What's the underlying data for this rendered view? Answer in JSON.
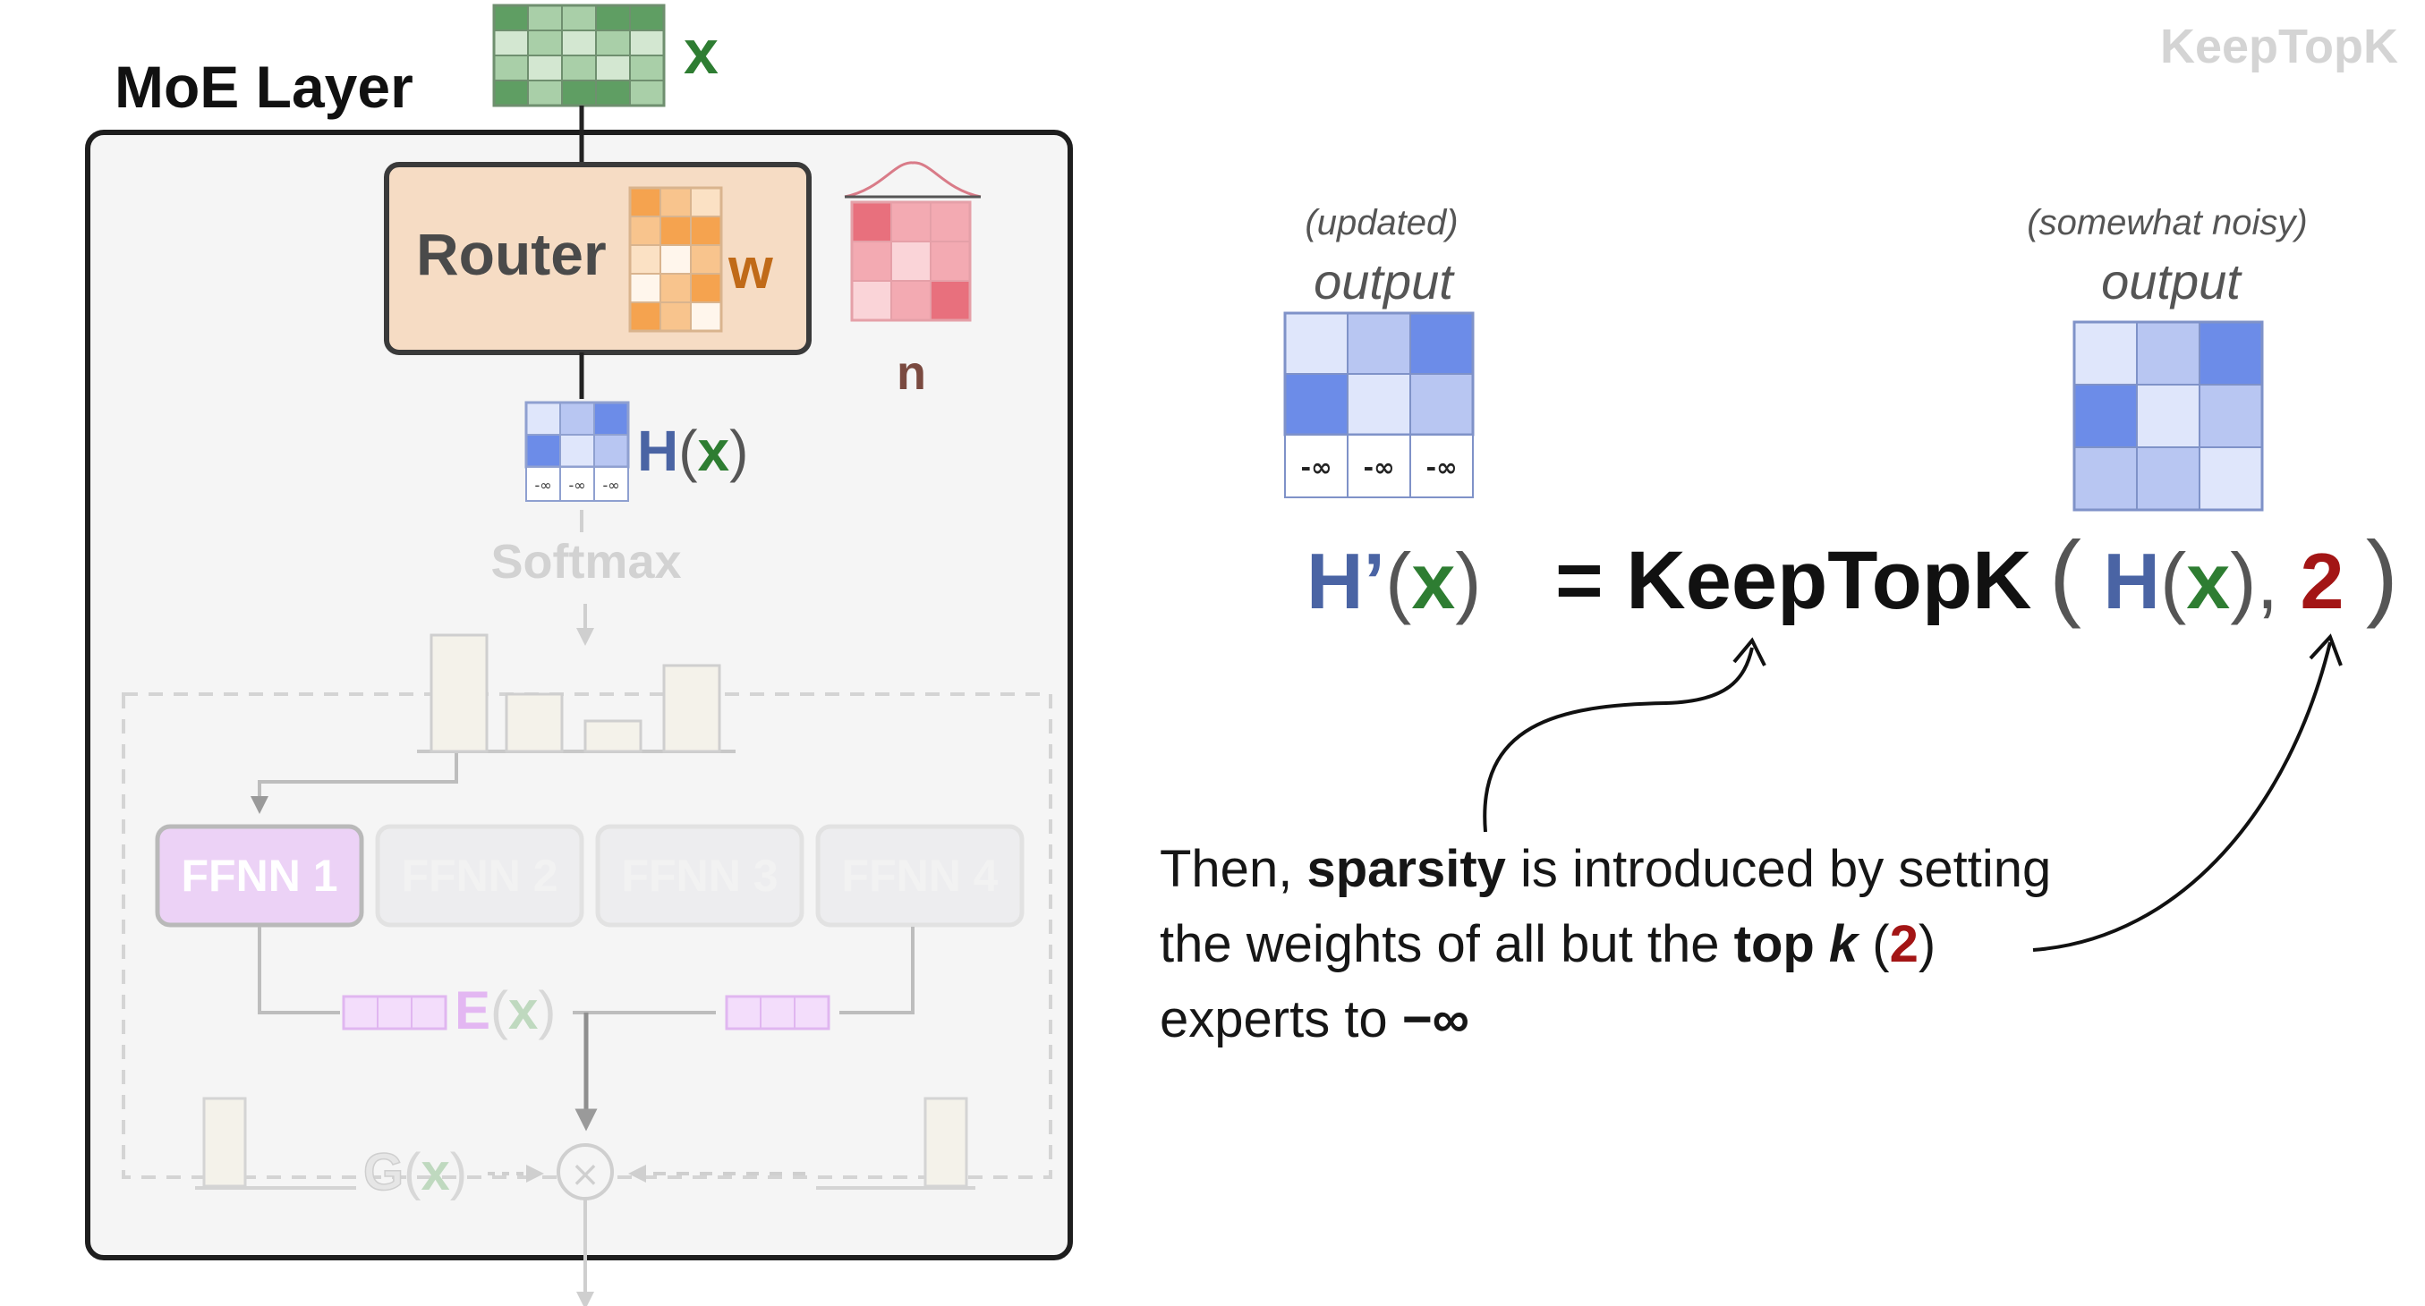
{
  "watermark": "KeepTopK",
  "moe": {
    "title": "MoE Layer",
    "input_label": "x",
    "router_label": "Router",
    "router_weight_label": "w",
    "noise_label": "n",
    "logits_label_H": "H",
    "logits_label_x": "x",
    "softmax_label": "Softmax",
    "experts": [
      "FFNN 1",
      "FFNN 2",
      "FFNN 3",
      "FFNN 4"
    ],
    "expert_output_E": "E",
    "expert_output_x": "x",
    "gate_G": "G",
    "gate_x": "x",
    "multiply_symbol": "×",
    "neg_inf": "-∞"
  },
  "right": {
    "updated_caption": "(updated)",
    "noisy_caption": "(somewhat noisy)",
    "output_word": "output",
    "neg_inf": "-∞",
    "equation": {
      "lhs_H": "H’",
      "lhs_x": "x",
      "equals": "=",
      "func": "KeepTopK",
      "arg_H": "H",
      "arg_x": "x",
      "k": "2"
    },
    "explanation": {
      "line1_pre": "Then, ",
      "line1_bold": "sparsity",
      "line1_post": " is introduced by setting",
      "line2_pre": "the weights of all but the ",
      "line2_bold": "top ",
      "line2_k": "k",
      "line2_open": " (",
      "line2_num": "2",
      "line2_close": ")",
      "line3_pre": "experts to ",
      "line3_bold": "−∞"
    }
  },
  "colors": {
    "green": "#2e7d32",
    "blue_text": "#4a64a4",
    "dark_red": "#a31515",
    "router_fill": "#f6dcc4",
    "orange": "#f5a34f",
    "red": "#e86b7b",
    "blue_strong": "#6c8ce8",
    "purple": "#d6a8f0",
    "brown": "#8a4d2e"
  }
}
